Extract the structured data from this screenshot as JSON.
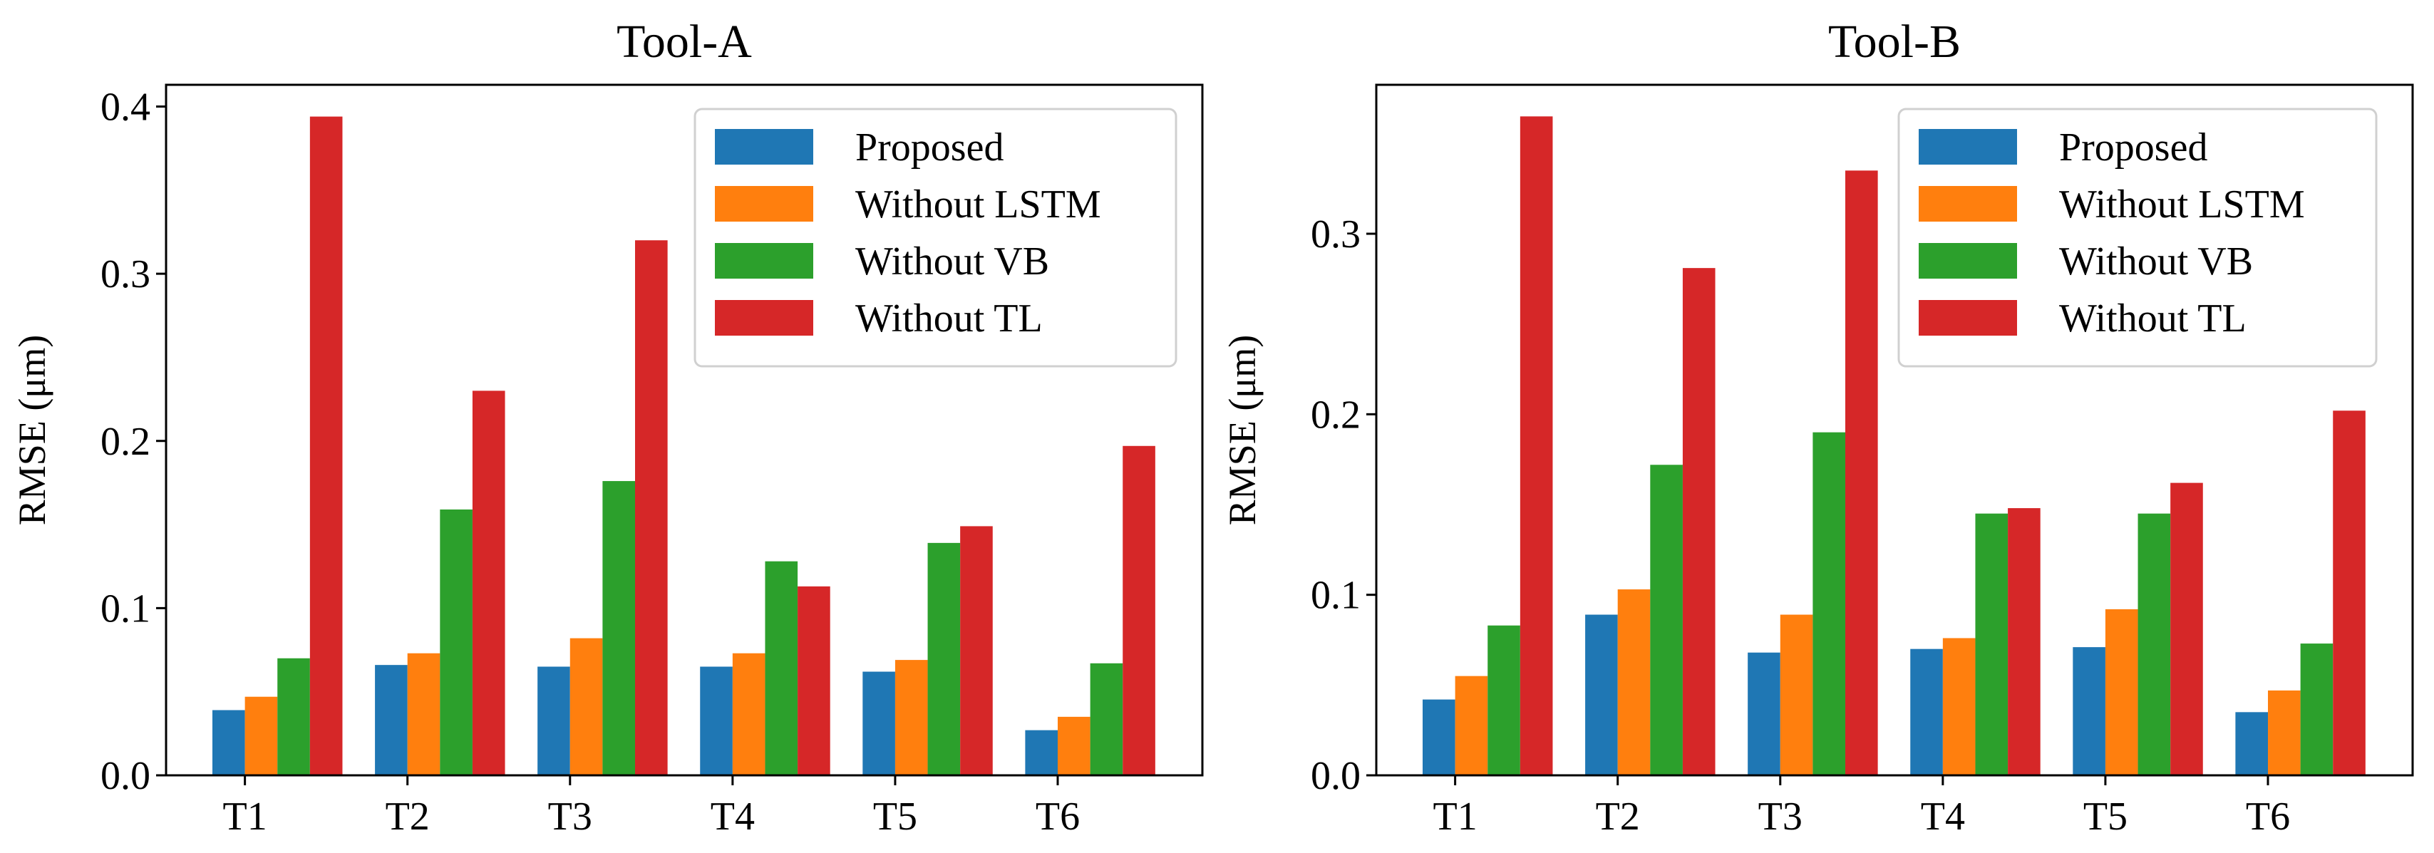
{
  "chart_data": [
    {
      "type": "bar",
      "title": "Tool-A",
      "xlabel": "",
      "ylabel": "RMSE (μm)",
      "categories": [
        "T1",
        "T2",
        "T3",
        "T4",
        "T5",
        "T6"
      ],
      "ylim": [
        0,
        0.413
      ],
      "yticks": [
        0.0,
        0.1,
        0.2,
        0.3,
        0.4
      ],
      "ytick_labels": [
        "0.0",
        "0.1",
        "0.2",
        "0.3",
        "0.4"
      ],
      "legend_position": "top-right",
      "series": [
        {
          "name": "Proposed",
          "color": "#1f77b4",
          "values": [
            0.039,
            0.066,
            0.065,
            0.065,
            0.062,
            0.027
          ]
        },
        {
          "name": "Without LSTM",
          "color": "#ff7f0e",
          "values": [
            0.047,
            0.073,
            0.082,
            0.073,
            0.069,
            0.035
          ]
        },
        {
          "name": "Without VB",
          "color": "#2ca02c",
          "values": [
            0.07,
            0.159,
            0.176,
            0.128,
            0.139,
            0.067
          ]
        },
        {
          "name": "Without TL",
          "color": "#d62728",
          "values": [
            0.394,
            0.23,
            0.32,
            0.113,
            0.149,
            0.197
          ]
        }
      ]
    },
    {
      "type": "bar",
      "title": "Tool-B",
      "xlabel": "",
      "ylabel": "RMSE (μm)",
      "categories": [
        "T1",
        "T2",
        "T3",
        "T4",
        "T5",
        "T6"
      ],
      "ylim": [
        0,
        0.3825
      ],
      "yticks": [
        0.0,
        0.1,
        0.2,
        0.3
      ],
      "ytick_labels": [
        "0.0",
        "0.1",
        "0.2",
        "0.3"
      ],
      "legend_position": "top-right",
      "series": [
        {
          "name": "Proposed",
          "color": "#1f77b4",
          "values": [
            0.042,
            0.089,
            0.068,
            0.07,
            0.071,
            0.035
          ]
        },
        {
          "name": "Without LSTM",
          "color": "#ff7f0e",
          "values": [
            0.055,
            0.103,
            0.089,
            0.076,
            0.092,
            0.047
          ]
        },
        {
          "name": "Without VB",
          "color": "#2ca02c",
          "values": [
            0.083,
            0.172,
            0.19,
            0.145,
            0.145,
            0.073
          ]
        },
        {
          "name": "Without TL",
          "color": "#d62728",
          "values": [
            0.365,
            0.281,
            0.335,
            0.148,
            0.162,
            0.202
          ]
        }
      ]
    }
  ]
}
